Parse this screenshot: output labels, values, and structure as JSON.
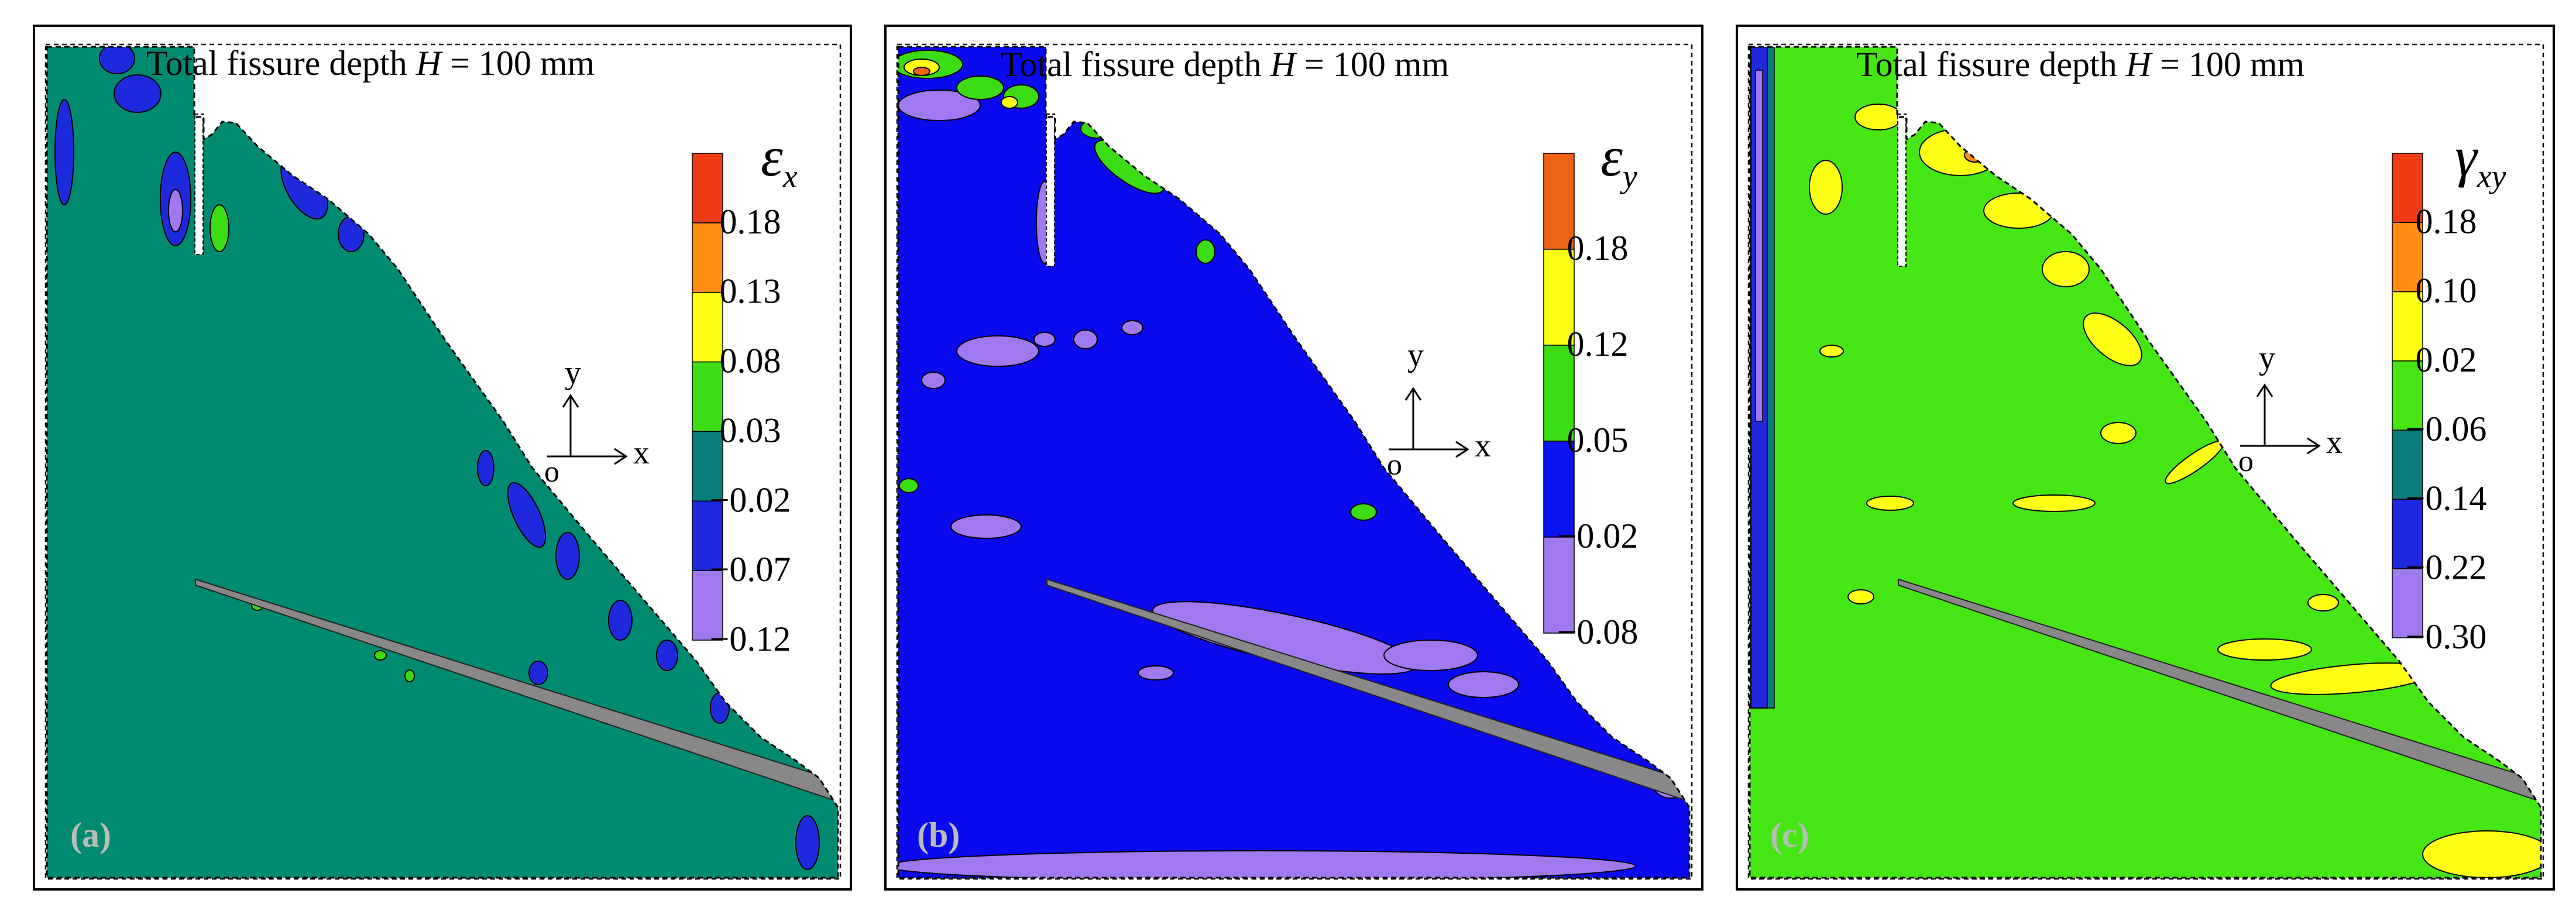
{
  "figure": {
    "panels": [
      {
        "id": "a",
        "label": "(a)",
        "title_prefix": "Total fissure depth ",
        "title_var": "H",
        "title_suffix": " = 100 mm",
        "symbol_main": "ε",
        "symbol_sub": "x",
        "background_color": "#008a70",
        "legend": {
          "colors": [
            "#ee3c14",
            "#ff8c14",
            "#ffff14",
            "#3cdc14",
            "#0a7d7d",
            "#1e28dc",
            "#a078f0"
          ],
          "tick_labels": [
            "0.18",
            "0.13",
            "0.08",
            "0.03",
            "−0.02",
            "−0.07",
            "−0.12"
          ]
        },
        "axes_glyph": {
          "x": "x",
          "y": "y",
          "origin": "o"
        }
      },
      {
        "id": "b",
        "label": "(b)",
        "title_prefix": "Total fissure depth ",
        "title_var": "H",
        "title_suffix": " = 100 mm",
        "symbol_main": "ε",
        "symbol_sub": "y",
        "background_color": "#0a0aee",
        "legend": {
          "colors": [
            "#ee6414",
            "#ffff14",
            "#3cdc14",
            "#0a14ee",
            "#a078f0"
          ],
          "tick_labels": [
            "0.18",
            "0.12",
            "0.05",
            "−0.02",
            "−0.08"
          ]
        },
        "axes_glyph": {
          "x": "x",
          "y": "y",
          "origin": "o"
        }
      },
      {
        "id": "c",
        "label": "(c)",
        "title_prefix": "Total fissure depth ",
        "title_var": "H",
        "title_suffix": " = 100 mm",
        "symbol_main": "γ",
        "symbol_sub": "xy",
        "background_color": "#46e614",
        "legend": {
          "colors": [
            "#ee3c14",
            "#ff8c14",
            "#ffff14",
            "#46e614",
            "#0a7d7d",
            "#1e28dc",
            "#a078f0"
          ],
          "tick_labels": [
            "0.18",
            "0.10",
            "0.02",
            "−0.06",
            "−0.14",
            "−0.22",
            "−0.30"
          ]
        },
        "axes_glyph": {
          "x": "x",
          "y": "y",
          "origin": "o"
        }
      }
    ]
  },
  "chart_data": [
    {
      "type": "heatmap",
      "title": "Total fissure depth H = 100 mm",
      "field": "εx",
      "panel_label": "(a)",
      "color_scale": [
        "0.18",
        "0.13",
        "0.08",
        "0.03",
        "−0.02",
        "−0.07",
        "−0.12"
      ],
      "dominant_range": [
        "−0.02",
        "0.03"
      ]
    },
    {
      "type": "heatmap",
      "title": "Total fissure depth H = 100 mm",
      "field": "εy",
      "panel_label": "(b)",
      "color_scale": [
        "0.18",
        "0.12",
        "0.05",
        "−0.02",
        "−0.08"
      ],
      "dominant_range": [
        "−0.02",
        "0.05"
      ]
    },
    {
      "type": "heatmap",
      "title": "Total fissure depth H = 100 mm",
      "field": "γxy",
      "panel_label": "(c)",
      "color_scale": [
        "0.18",
        "0.10",
        "0.02",
        "−0.06",
        "−0.14",
        "−0.22",
        "−0.30"
      ],
      "dominant_range": [
        "−0.06",
        "0.02"
      ]
    }
  ]
}
